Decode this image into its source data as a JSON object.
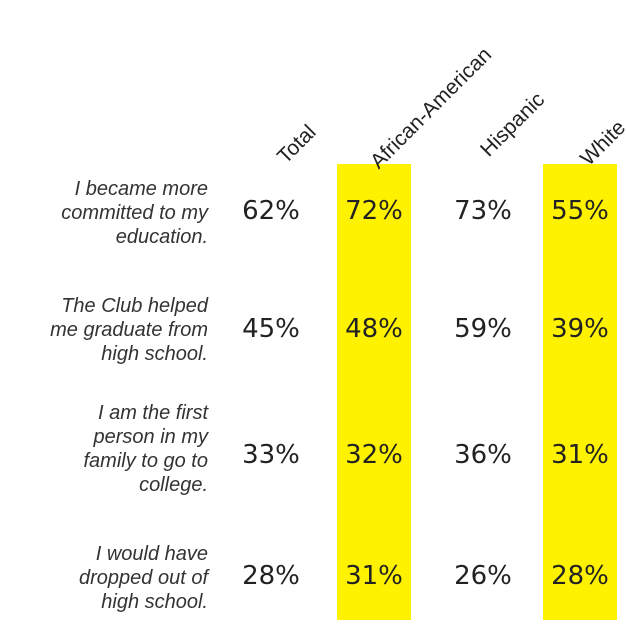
{
  "chart_data": {
    "type": "table",
    "columns": [
      "Total",
      "African-American",
      "Hispanic",
      "White"
    ],
    "highlighted_columns": [
      "African-American",
      "White"
    ],
    "highlight_color": "#fff200",
    "rows": [
      {
        "label": "I became more\ncommitted to my\neducation.",
        "values": [
          "62%",
          "72%",
          "73%",
          "55%"
        ]
      },
      {
        "label": "The Club helped\nme graduate from\nhigh school.",
        "values": [
          "45%",
          "48%",
          "59%",
          "39%"
        ]
      },
      {
        "label": "I am the first\nperson in my\nfamily to go to\ncollege.",
        "values": [
          "33%",
          "32%",
          "36%",
          "31%"
        ]
      },
      {
        "label": "I would have\ndropped out of\nhigh school.",
        "values": [
          "28%",
          "31%",
          "26%",
          "28%"
        ]
      }
    ]
  }
}
